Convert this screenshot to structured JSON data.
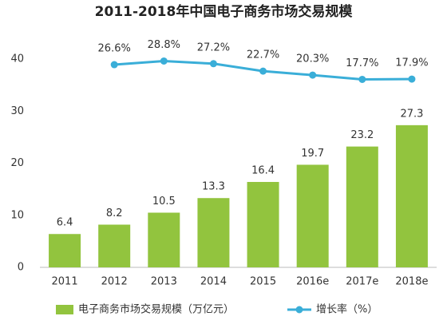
{
  "chart_data": {
    "type": "bar_line",
    "title": "2011-2018年中国电子商务市场交易规模",
    "categories": [
      "2011",
      "2012",
      "2013",
      "2014",
      "2015",
      "2016e",
      "2017e",
      "2018e"
    ],
    "series": [
      {
        "name": "电子商务市场交易规模（万亿元）",
        "type": "bar",
        "color": "#92c43e",
        "values": [
          6.4,
          8.2,
          10.5,
          13.3,
          16.4,
          19.7,
          23.2,
          27.3
        ]
      },
      {
        "name": "增长率（%）",
        "type": "line",
        "axis": "y2",
        "color": "#3aaed8",
        "values": [
          null,
          26.6,
          28.8,
          27.2,
          22.7,
          20.3,
          17.7,
          17.9
        ],
        "value_labels": [
          null,
          "26.6%",
          "28.8%",
          "27.2%",
          "22.7%",
          "20.3%",
          "17.7%",
          "17.9%"
        ]
      }
    ],
    "ylim": [
      0,
      40
    ],
    "yticks": [
      0,
      10,
      20,
      30,
      40
    ],
    "y2lim": [
      -96,
      30
    ],
    "grid": false,
    "legend": "bottom"
  }
}
